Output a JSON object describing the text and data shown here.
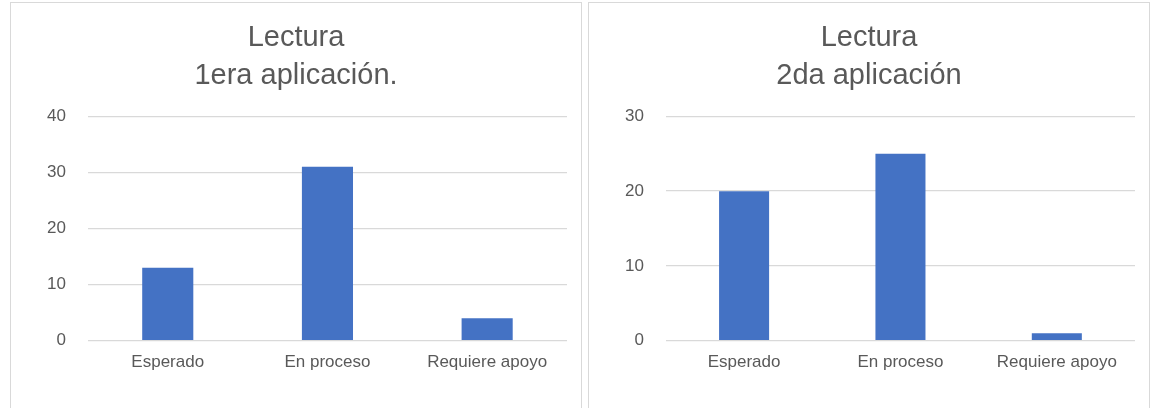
{
  "chart_data": [
    {
      "type": "bar",
      "title": "Lectura\n1era aplicación.",
      "categories": [
        "Esperado",
        "En proceso",
        "Requiere apoyo"
      ],
      "values": [
        13,
        31,
        4
      ],
      "color": "#4472c4",
      "ylim": [
        0,
        40
      ],
      "yticks": [
        0,
        10,
        20,
        30,
        40
      ],
      "grid": "y"
    },
    {
      "type": "bar",
      "title": "Lectura\n2da aplicación",
      "categories": [
        "Esperado",
        "En proceso",
        "Requiere apoyo"
      ],
      "values": [
        20,
        25,
        1
      ],
      "color": "#4472c4",
      "ylim": [
        0,
        30
      ],
      "yticks": [
        0,
        10,
        20,
        30
      ],
      "grid": "y"
    }
  ]
}
